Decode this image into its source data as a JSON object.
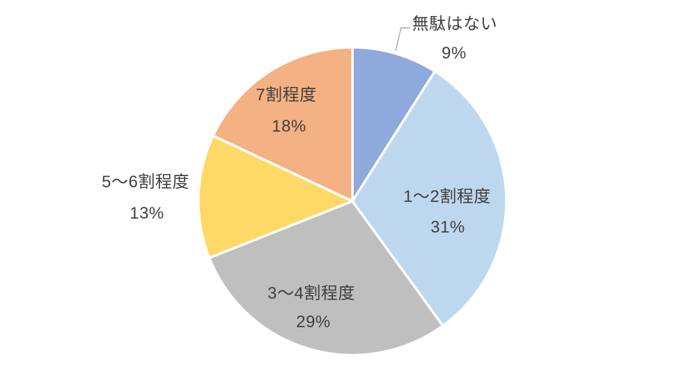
{
  "chart_data": {
    "type": "pie",
    "title": "",
    "start_angle_deg": 0,
    "direction": "clockwise",
    "legend": "none",
    "background": "#FFFFFF",
    "slice_border_color": "#FFFFFF",
    "label_text_color": "#404040",
    "leader_line_color": "#A6A6A6",
    "slices": [
      {
        "label": "無駄はない",
        "value": 9,
        "pct_label": "9%",
        "color": "#8EA9DB",
        "label_placement": "outside",
        "leader_line": true
      },
      {
        "label": "1〜2割程度",
        "value": 31,
        "pct_label": "31%",
        "color": "#BDD7EE",
        "label_placement": "inside",
        "leader_line": false
      },
      {
        "label": "3〜4割程度",
        "value": 29,
        "pct_label": "29%",
        "color": "#BFBFBF",
        "label_placement": "inside",
        "leader_line": false
      },
      {
        "label": "5〜6割程度",
        "value": 13,
        "pct_label": "13%",
        "color": "#FFD966",
        "label_placement": "outside",
        "leader_line": false
      },
      {
        "label": "7割程度",
        "value": 18,
        "pct_label": "18%",
        "color": "#F4B183",
        "label_placement": "inside",
        "leader_line": false
      }
    ]
  }
}
